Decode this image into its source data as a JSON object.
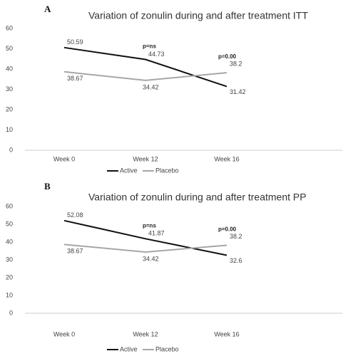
{
  "chart_data": [
    {
      "type": "line",
      "panel": "A",
      "title": "Variation of zonulin during and  after treatment ITT",
      "categories": [
        "Week 0",
        "Week 12",
        "Week 16"
      ],
      "series": [
        {
          "name": "Active",
          "color": "#111111",
          "values": [
            50.59,
            44.73,
            31.42
          ]
        },
        {
          "name": "Placebo",
          "color": "#a6a6a6",
          "values": [
            38.67,
            34.42,
            38.2
          ]
        }
      ],
      "annotations": [
        "p=ns",
        "p=0.00"
      ],
      "ylim": [
        0,
        60
      ],
      "yticks": [
        0,
        10,
        20,
        30,
        40,
        50,
        60
      ],
      "grid": false
    },
    {
      "type": "line",
      "panel": "B",
      "title": "Variation of zonulin during and  after treatment PP",
      "categories": [
        "Week 0",
        "Week 12",
        "Week 16"
      ],
      "series": [
        {
          "name": "Active",
          "color": "#111111",
          "values": [
            52.08,
            41.87,
            32.6
          ]
        },
        {
          "name": "Placebo",
          "color": "#a6a6a6",
          "values": [
            38.67,
            34.42,
            38.2
          ]
        }
      ],
      "annotations": [
        "p=ns",
        "p=0.00"
      ],
      "ylim": [
        0,
        60
      ],
      "yticks": [
        0,
        10,
        20,
        30,
        40,
        50,
        60
      ],
      "grid": false
    }
  ]
}
